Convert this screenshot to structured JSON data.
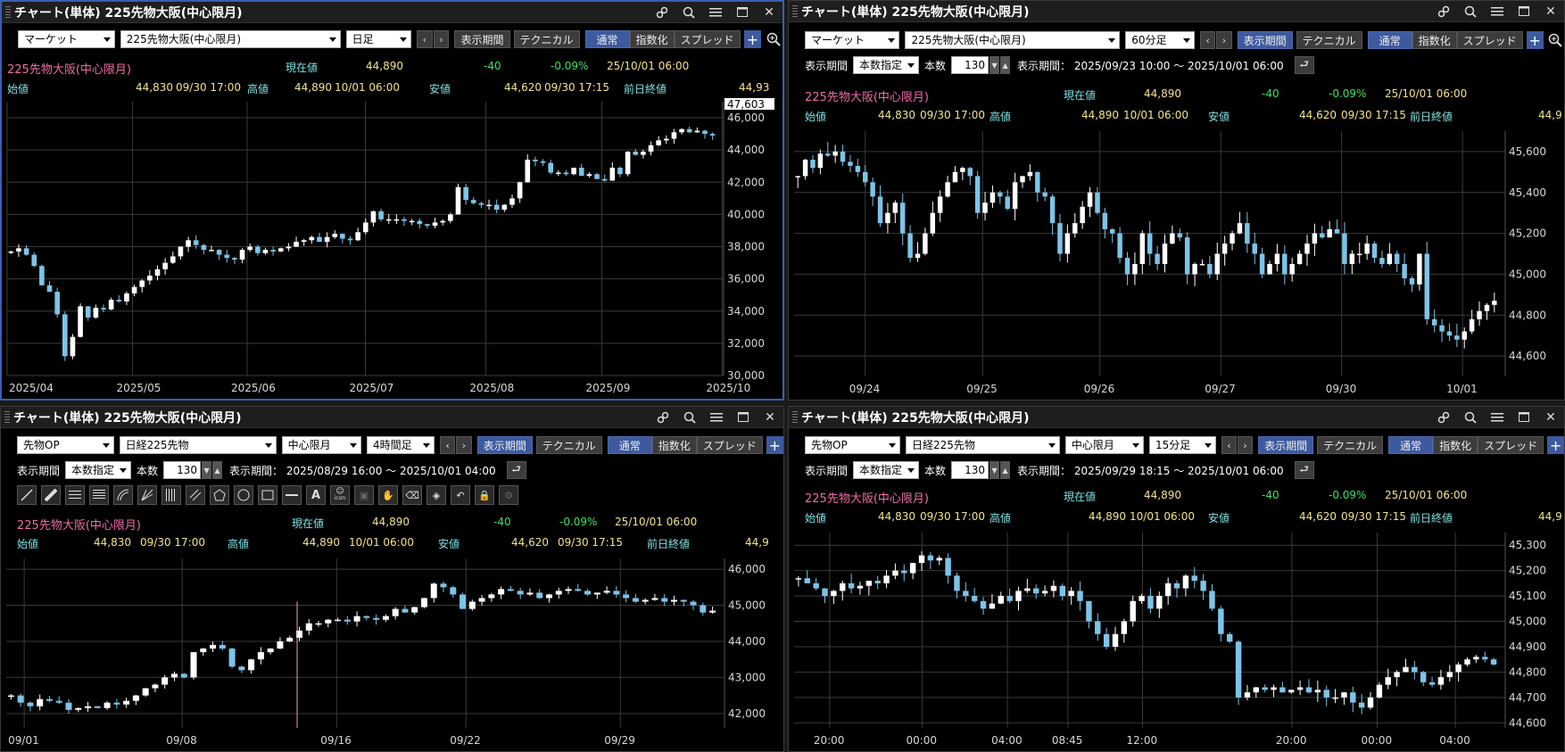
{
  "panels": [
    {
      "title": "チャート(単体) 225先物大阪(中心限月)",
      "row1": {
        "sel1": "マーケット",
        "sel2": "225先物大阪(中心限月)",
        "sel3": "日足",
        "btn_period": "表示期間",
        "btn_tech": "テクニカル",
        "seg": [
          "通常",
          "指数化",
          "スプレッド"
        ]
      },
      "info1": {
        "name": "225先物大阪(中心限月)",
        "cur_label": "現在値",
        "cur_val": "44,890",
        "chg": "-40",
        "pct": "-0.09%",
        "dt": "25/10/01  06:00"
      },
      "info2": {
        "open_label": "始値",
        "open_val": "44,830",
        "open_dt": "09/30  17:00",
        "high_label": "高値",
        "high_val": "44,890",
        "high_dt": "10/01  06:00",
        "low_label": "安値",
        "low_val": "44,620",
        "low_dt": "09/30  17:15",
        "prev_label": "前日終値",
        "prev_val": "44,93"
      },
      "chart_data": {
        "type": "candlestick",
        "ylim": [
          30000,
          47000
        ],
        "yticks": [
          "46,000",
          "44,000",
          "42,000",
          "40,000",
          "38,000",
          "36,000",
          "34,000",
          "32,000",
          "30,000"
        ],
        "ytick_values": [
          46000,
          44000,
          42000,
          40000,
          38000,
          36000,
          34000,
          32000,
          30000
        ],
        "top_label": "47,603",
        "xticks": [
          "2025/04",
          "2025/05",
          "2025/06",
          "2025/07",
          "2025/08",
          "2025/09",
          "2025/10"
        ],
        "xtick_fracs": [
          0.0,
          0.175,
          0.335,
          0.5,
          0.668,
          0.83,
          0.998
        ],
        "closes": [
          37700,
          37900,
          37500,
          36800,
          35600,
          35200,
          33800,
          31200,
          32400,
          34300,
          33600,
          34200,
          34100,
          34700,
          34600,
          35100,
          35500,
          35900,
          36200,
          36600,
          37000,
          37400,
          38000,
          38400,
          38100,
          37800,
          37800,
          37500,
          37300,
          37200,
          37800,
          38000,
          37600,
          37800,
          37700,
          37900,
          38000,
          38300,
          38400,
          38600,
          38300,
          38600,
          38800,
          38500,
          38400,
          38900,
          39500,
          40200,
          39700,
          39700,
          39700,
          39600,
          39600,
          39400,
          39300,
          39500,
          39600,
          40000,
          41700,
          40900,
          40700,
          40600,
          40600,
          40300,
          40600,
          41000,
          42000,
          43400,
          43300,
          43200,
          42600,
          42600,
          42500,
          42900,
          42400,
          42500,
          42200,
          42100,
          42900,
          42500,
          43900,
          43700,
          43900,
          44300,
          44600,
          44700,
          45100,
          45300,
          45100,
          45200,
          45000,
          44900
        ]
      }
    },
    {
      "title": "チャート(単体) 225先物大阪(中心限月)",
      "row1": {
        "sel1": "マーケット",
        "sel2": "225先物大阪(中心限月)",
        "sel3": "60分足",
        "btn_period": "表示期間",
        "btn_tech": "テクニカル",
        "seg": [
          "通常",
          "指数化",
          "スプレッド"
        ]
      },
      "row2": {
        "label": "表示期間",
        "mode": "本数指定",
        "count_label": "本数",
        "count": "130",
        "range": "表示期間：  2025/09/23 10:00 ～ 2025/10/01 06:00"
      },
      "info1": {
        "name": "225先物大阪(中心限月)",
        "cur_label": "現在値",
        "cur_val": "44,890",
        "chg": "-40",
        "pct": "-0.09%",
        "dt": "25/10/01  06:00"
      },
      "info2": {
        "open_label": "始値",
        "open_val": "44,830",
        "open_dt": "09/30  17:00",
        "high_label": "高値",
        "high_val": "44,890",
        "high_dt": "10/01  06:00",
        "low_label": "安値",
        "low_val": "44,620",
        "low_dt": "09/30  17:15",
        "prev_label": "前日終値",
        "prev_val": "44,9"
      },
      "chart_data": {
        "type": "candlestick",
        "ylim": [
          44500,
          45700
        ],
        "yticks": [
          "45,600",
          "45,400",
          "45,200",
          "45,000",
          "44,800",
          "44,600"
        ],
        "ytick_values": [
          45600,
          45400,
          45200,
          45000,
          44800,
          44600
        ],
        "xticks": [
          "09/24",
          "09/25",
          "09/26",
          "09/27",
          "09/30",
          "10/01"
        ],
        "xtick_fracs": [
          0.1,
          0.265,
          0.43,
          0.6,
          0.77,
          0.94
        ],
        "closes": [
          45480,
          45560,
          45520,
          45590,
          45580,
          45600,
          45550,
          45530,
          45500,
          45450,
          45380,
          45250,
          45300,
          45350,
          45200,
          45080,
          45100,
          45200,
          45300,
          45380,
          45450,
          45500,
          45520,
          45480,
          45300,
          45350,
          45400,
          45380,
          45320,
          45450,
          45480,
          45500,
          45400,
          45380,
          45250,
          45100,
          45200,
          45250,
          45330,
          45400,
          45300,
          45220,
          45200,
          45080,
          45000,
          45050,
          45200,
          45100,
          45050,
          45150,
          45200,
          45180,
          45000,
          45050,
          45050,
          45000,
          45100,
          45150,
          45200,
          45250,
          45150,
          45100,
          45000,
          45050,
          45100,
          45000,
          45050,
          45100,
          45150,
          45200,
          45180,
          45220,
          45200,
          45050,
          45100,
          45100,
          45150,
          45080,
          45050,
          45100,
          45050,
          44980,
          44950,
          45100,
          44780,
          44750,
          44720,
          44700,
          44680,
          44720,
          44780,
          44820,
          44850,
          44870
        ]
      }
    },
    {
      "title": "チャート(単体) 225先物大阪(中心限月)",
      "row1": {
        "sel1": "先物OP",
        "sel2": "日経225先物",
        "sel3": "中心限月",
        "sel4": "4時間足",
        "btn_period": "表示期間",
        "btn_tech": "テクニカル",
        "seg": [
          "通常",
          "指数化",
          "スプレッド"
        ]
      },
      "row2": {
        "label": "表示期間",
        "mode": "本数指定",
        "count_label": "本数",
        "count": "130",
        "range": "表示期間：  2025/08/29 16:00 ～ 2025/10/01 04:00"
      },
      "info1": {
        "name": "225先物大阪(中心限月)",
        "cur_label": "現在値",
        "cur_val": "44,890",
        "chg": "-40",
        "pct": "-0.09%",
        "dt": "25/10/01  06:00"
      },
      "info2": {
        "open_label": "始値",
        "open_val": "44,830",
        "open_dt": "09/30  17:00",
        "high_label": "高値",
        "high_val": "44,890",
        "high_dt": "10/01  06:00",
        "low_label": "安値",
        "low_val": "44,620",
        "low_dt": "09/30  17:15",
        "prev_label": "前日終値",
        "prev_val": "44,9"
      },
      "tools": [
        "line-tool-icon",
        "ruler-tool-icon",
        "hlines-tool-icon",
        "fib-tool-icon",
        "arc-tool-icon",
        "fan-tool-icon",
        "vlines-tool-icon",
        "channel-tool-icon",
        "pentagon-tool-icon",
        "circle-tool-icon",
        "rect-tool-icon",
        "hline-tool-icon",
        "text-tool-icon",
        "icon-tool-icon",
        "copy-tool-icon",
        "hand-tool-icon",
        "eraser-tool-icon",
        "tag-tool-icon",
        "undo-tool-icon",
        "lock-tool-icon",
        "gear-tool-icon"
      ],
      "tool_text": {
        "A": "A",
        "icon": "icon"
      },
      "chart_data": {
        "type": "candlestick",
        "ylim": [
          41600,
          46300
        ],
        "yticks": [
          "46,000",
          "45,000",
          "44,000",
          "43,000",
          "42,000"
        ],
        "ytick_values": [
          46000,
          45000,
          44000,
          43000,
          42000
        ],
        "xticks": [
          "09/01",
          "09/08",
          "09/16",
          "09/22",
          "09/29"
        ],
        "xtick_fracs": [
          0.025,
          0.245,
          0.46,
          0.64,
          0.855
        ],
        "closes": [
          42500,
          42300,
          42200,
          42400,
          42350,
          42300,
          42100,
          42150,
          42200,
          42150,
          42300,
          42250,
          42350,
          42500,
          42700,
          42800,
          43000,
          43100,
          43000,
          43700,
          43800,
          43900,
          43800,
          43300,
          43200,
          43500,
          43700,
          43800,
          44000,
          44100,
          44300,
          44500,
          44500,
          44600,
          44600,
          44550,
          44700,
          44650,
          44600,
          44700,
          44900,
          44800,
          44950,
          45200,
          45600,
          45500,
          45300,
          44900,
          45100,
          45200,
          45300,
          45450,
          45400,
          45300,
          45350,
          45200,
          45300,
          45400,
          45450,
          45400,
          45300,
          45350,
          45400,
          45300,
          45200,
          45100,
          45150,
          45200,
          45100,
          45150,
          45100,
          45000,
          44800,
          44850
        ]
      }
    },
    {
      "title": "チャート(単体) 225先物大阪(中心限月)",
      "row1": {
        "sel1": "先物OP",
        "sel2": "日経225先物",
        "sel3": "中心限月",
        "sel4": "15分足",
        "btn_period": "表示期間",
        "btn_tech": "テクニカル",
        "seg": [
          "通常",
          "指数化",
          "スプレッド"
        ]
      },
      "row2": {
        "label": "表示期間",
        "mode": "本数指定",
        "count_label": "本数",
        "count": "130",
        "range": "表示期間：  2025/09/29 18:15 ～ 2025/10/01 06:00"
      },
      "info1": {
        "name": "225先物大阪(中心限月)",
        "cur_label": "現在値",
        "cur_val": "44,890",
        "chg": "-40",
        "pct": "-0.09%",
        "dt": "25/10/01  06:00"
      },
      "info2": {
        "open_label": "始値",
        "open_val": "44,830",
        "open_dt": "09/30  17:00",
        "high_label": "高値",
        "high_val": "44,890",
        "high_dt": "10/01  06:00",
        "low_label": "安値",
        "low_val": "44,620",
        "low_dt": "09/30  17:15",
        "prev_label": "前日終値",
        "prev_val": "44,9"
      },
      "chart_data": {
        "type": "candlestick",
        "ylim": [
          44580,
          45350
        ],
        "yticks": [
          "45,300",
          "45,200",
          "45,100",
          "45,000",
          "44,900",
          "44,800",
          "44,700",
          "44,600"
        ],
        "ytick_values": [
          45300,
          45200,
          45100,
          45000,
          44900,
          44800,
          44700,
          44600
        ],
        "xticks": [
          "20:00",
          "00:00",
          "04:00",
          "08:45",
          "12:00",
          "20:00",
          "00:00",
          "04:00"
        ],
        "xtick_fracs": [
          0.05,
          0.18,
          0.3,
          0.385,
          0.49,
          0.7,
          0.82,
          0.93
        ],
        "closes": [
          45170,
          45150,
          45130,
          45100,
          45120,
          45150,
          45130,
          45140,
          45160,
          45150,
          45180,
          45200,
          45190,
          45230,
          45260,
          45240,
          45250,
          45180,
          45120,
          45100,
          45080,
          45050,
          45070,
          45100,
          45080,
          45120,
          45130,
          45110,
          45120,
          45140,
          45100,
          45120,
          45080,
          45000,
          44950,
          44900,
          44950,
          45000,
          45080,
          45100,
          45050,
          45100,
          45150,
          45130,
          45180,
          45160,
          45120,
          45050,
          44950,
          44920,
          44700,
          44720,
          44740,
          44730,
          44740,
          44720,
          44730,
          44740,
          44720,
          44730,
          44700,
          44700,
          44720,
          44680,
          44660,
          44700,
          44750,
          44780,
          44800,
          44820,
          44800,
          44760,
          44750,
          44780,
          44800,
          44830,
          44850,
          44860,
          44850,
          44830
        ]
      }
    }
  ]
}
